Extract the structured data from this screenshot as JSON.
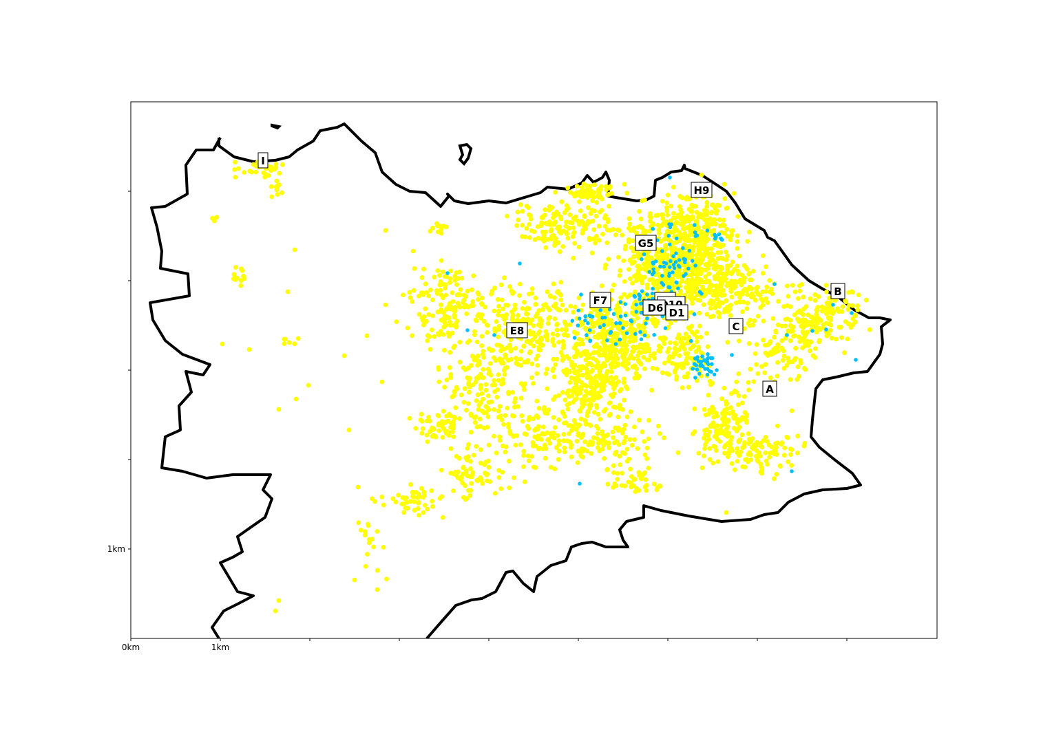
{
  "map": {
    "x_ticks": [
      "0km",
      "1km"
    ],
    "y_ticks": [
      "1km"
    ],
    "colors": {
      "background": "#ffffff",
      "boundary": "#000000",
      "points_primary": "#ffff00",
      "points_secondary": "#00bfff",
      "label_box": "#ffffff",
      "label_border": "#000000"
    },
    "region_labels": [
      "I",
      "H9",
      "G5",
      "B",
      "F7",
      "D3",
      "D10",
      "D6",
      "D1",
      "C",
      "E8",
      "A"
    ]
  }
}
